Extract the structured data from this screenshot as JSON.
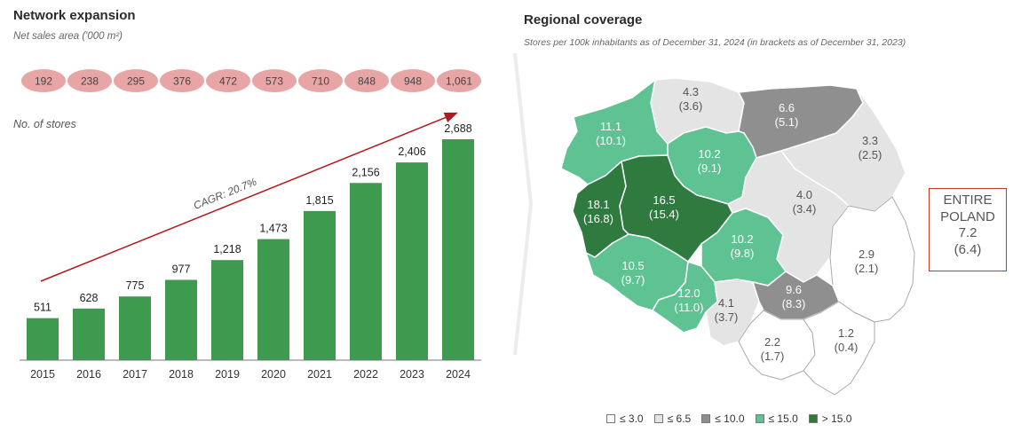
{
  "left_panel": {
    "title": "Network expansion",
    "subtitle": "Net sales area ('000 m²)",
    "stores_label": "No. of stores",
    "cagr_label": "CAGR: 20.7%"
  },
  "right_panel": {
    "title": "Regional coverage",
    "subtitle": "Stores per 100k inhabitants as of December 31, 2024 (in brackets as of December 31, 2023)",
    "entire_poland": {
      "line1": "ENTIRE",
      "line2": "POLAND",
      "value": "7.2",
      "prev": "(6.4)"
    }
  },
  "colors": {
    "bar": "#3d9a4f",
    "oval": "#e8a5a5",
    "arrow": "#b0191e",
    "very_light": "#ffffff",
    "light_grey": "#e4e4e4",
    "mid_grey": "#8f8f8f",
    "light_green": "#5ec292",
    "dark_green": "#2f7a3e"
  },
  "chart_data": [
    {
      "type": "bar",
      "categories": [
        "2015",
        "2016",
        "2017",
        "2018",
        "2019",
        "2020",
        "2021",
        "2022",
        "2023",
        "2024"
      ],
      "series": [
        {
          "name": "No. of stores",
          "values": [
            511,
            628,
            775,
            977,
            1218,
            1473,
            1815,
            2156,
            2406,
            2688
          ],
          "labels": [
            "511",
            "628",
            "775",
            "977",
            "1,218",
            "1,473",
            "1,815",
            "2,156",
            "2,406",
            "2,688"
          ]
        }
      ],
      "sales_area": {
        "name": "Net sales area ('000 m²)",
        "values": [
          192,
          238,
          295,
          376,
          472,
          573,
          710,
          848,
          948,
          1061
        ],
        "labels": [
          "192",
          "238",
          "295",
          "376",
          "472",
          "573",
          "710",
          "848",
          "948",
          "1,061"
        ]
      },
      "ylim": [
        0,
        2688
      ]
    },
    {
      "type": "map",
      "regions": [
        {
          "id": "pomorskie",
          "value": "4.3",
          "prev": "(3.6)",
          "class": "light_grey"
        },
        {
          "id": "warminsko-mazurskie",
          "value": "6.6",
          "prev": "(5.1)",
          "class": "mid_grey"
        },
        {
          "id": "zachodniopomorskie",
          "value": "11.1",
          "prev": "(10.1)",
          "class": "light_green"
        },
        {
          "id": "podlaskie",
          "value": "3.3",
          "prev": "(2.5)",
          "class": "light_grey"
        },
        {
          "id": "kujawsko-pomorskie",
          "value": "10.2",
          "prev": "(9.1)",
          "class": "light_green"
        },
        {
          "id": "lubuskie",
          "value": "18.1",
          "prev": "(16.8)",
          "class": "dark_green"
        },
        {
          "id": "wielkopolskie",
          "value": "16.5",
          "prev": "(15.4)",
          "class": "dark_green"
        },
        {
          "id": "mazowieckie",
          "value": "4.0",
          "prev": "(3.4)",
          "class": "light_grey"
        },
        {
          "id": "lodzkie",
          "value": "10.2",
          "prev": "(9.8)",
          "class": "light_green"
        },
        {
          "id": "lubelskie",
          "value": "2.9",
          "prev": "(2.1)",
          "class": "very_light"
        },
        {
          "id": "dolnoslaskie",
          "value": "10.5",
          "prev": "(9.7)",
          "class": "light_green"
        },
        {
          "id": "opolskie",
          "value": "12.0",
          "prev": "(11.0)",
          "class": "light_green"
        },
        {
          "id": "slaskie",
          "value": "4.1",
          "prev": "(3.7)",
          "class": "light_grey"
        },
        {
          "id": "swietokrzyskie",
          "value": "9.6",
          "prev": "(8.3)",
          "class": "mid_grey"
        },
        {
          "id": "malopolskie",
          "value": "2.2",
          "prev": "(1.7)",
          "class": "very_light"
        },
        {
          "id": "podkarpackie",
          "value": "1.2",
          "prev": "(0.4)",
          "class": "very_light"
        }
      ],
      "legend": [
        {
          "label": "≤ 3.0",
          "class": "very_light"
        },
        {
          "label": "≤ 6.5",
          "class": "light_grey"
        },
        {
          "label": "≤ 10.0",
          "class": "mid_grey"
        },
        {
          "label": "≤ 15.0",
          "class": "light_green"
        },
        {
          "label": "> 15.0",
          "class": "dark_green"
        }
      ]
    }
  ]
}
